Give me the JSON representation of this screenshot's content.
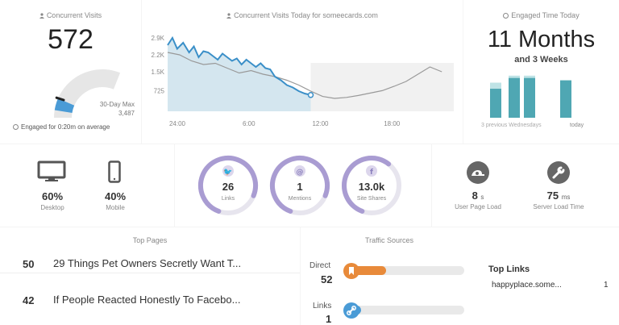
{
  "concurrent": {
    "title": "Concurrent Visits",
    "value": "572",
    "max_label": "30-Day Max",
    "max_value": "3,487",
    "gauge_fraction": 0.16,
    "engaged_note": "Engaged for 0:20m on average"
  },
  "today_chart": {
    "title": "Concurrent Visits Today for someecards.com",
    "chart_data": {
      "type": "line",
      "title": "Concurrent Visits Today for someecards.com",
      "x_ticks": [
        "24:00",
        "6:00",
        "12:00",
        "18:00"
      ],
      "y_ticks": [
        "2.9K",
        "2.2K",
        "1.5K",
        "725"
      ],
      "ylim": [
        0,
        3200
      ],
      "xlim": [
        0,
        24
      ],
      "series": [
        {
          "x": [
            0,
            0.4,
            0.8,
            1.3,
            1.8,
            2.2,
            2.6,
            3,
            3.4,
            3.8,
            4.2,
            4.6,
            5,
            5.4,
            5.8,
            6.2,
            6.6,
            7,
            7.4,
            7.8,
            8.2,
            8.6,
            9,
            9.5,
            10,
            10.5,
            11,
            11.5,
            12
          ],
          "y": [
            2600,
            2900,
            2450,
            2700,
            2300,
            2550,
            2100,
            2350,
            2300,
            2150,
            2000,
            2250,
            2100,
            1950,
            2050,
            1800,
            2000,
            1850,
            1700,
            1850,
            1650,
            1600,
            1300,
            1150,
            950,
            850,
            700,
            600,
            540
          ]
        },
        {
          "x": [
            0,
            1,
            2,
            3,
            4,
            5,
            6,
            7,
            8,
            9,
            10,
            11,
            12,
            13,
            14,
            15,
            16,
            17,
            18,
            19,
            20,
            21,
            22,
            23
          ],
          "y": [
            2300,
            2200,
            1950,
            1800,
            1850,
            1650,
            1450,
            1550,
            1400,
            1300,
            1150,
            950,
            700,
            480,
            400,
            440,
            520,
            620,
            720,
            900,
            1100,
            1400,
            1700,
            1500
          ]
        }
      ]
    }
  },
  "engaged": {
    "title": "Engaged Time Today",
    "value": "11 Months",
    "sub": "and 3 Weeks",
    "prev_label": "3 previous Wednesdays",
    "today_label": "today",
    "chart_data": {
      "type": "bar",
      "categories": [
        "",
        "",
        "",
        "today"
      ],
      "values": [
        0.62,
        0.85,
        0.85,
        0.8
      ],
      "outline": [
        0.75,
        0.9,
        0.9,
        0.8
      ]
    }
  },
  "devices": [
    {
      "icon": "desktop-icon",
      "value": "60%",
      "label": "Desktop"
    },
    {
      "icon": "mobile-icon",
      "value": "40%",
      "label": "Mobile"
    }
  ],
  "social": [
    {
      "icon": "twitter-icon",
      "glyph": "🐦",
      "value": "26",
      "label": "Links",
      "fraction": 0.85
    },
    {
      "icon": "at-icon",
      "glyph": "@",
      "value": "1",
      "label": "Mentions",
      "fraction": 0.85
    },
    {
      "icon": "facebook-icon",
      "glyph": "f",
      "value": "13.0k",
      "label": "Site Shares",
      "fraction": 0.62
    }
  ],
  "speed": [
    {
      "icon": "snail-icon",
      "value": "8",
      "unit": "s",
      "label": "User Page Load"
    },
    {
      "icon": "wrench-icon",
      "value": "75",
      "unit": "ms",
      "label": "Server Load Time"
    }
  ],
  "top_pages": {
    "title": "Top Pages",
    "items": [
      {
        "count": "50",
        "title": "29 Things Pet Owners Secretly Want T..."
      },
      {
        "count": "42",
        "title": "If People Reacted Honestly To Facebo..."
      }
    ]
  },
  "traffic": {
    "title": "Traffic Sources",
    "sources": [
      {
        "label": "Direct",
        "value": "52",
        "color": "#e88a3a",
        "fraction": 0.28
      },
      {
        "label": "Links",
        "value": "1",
        "color": "#4a9bd6",
        "fraction": 0.08
      }
    ],
    "top_links_title": "Top Links",
    "top_links": [
      {
        "url": "happyplace.some...",
        "count": "1"
      }
    ]
  }
}
